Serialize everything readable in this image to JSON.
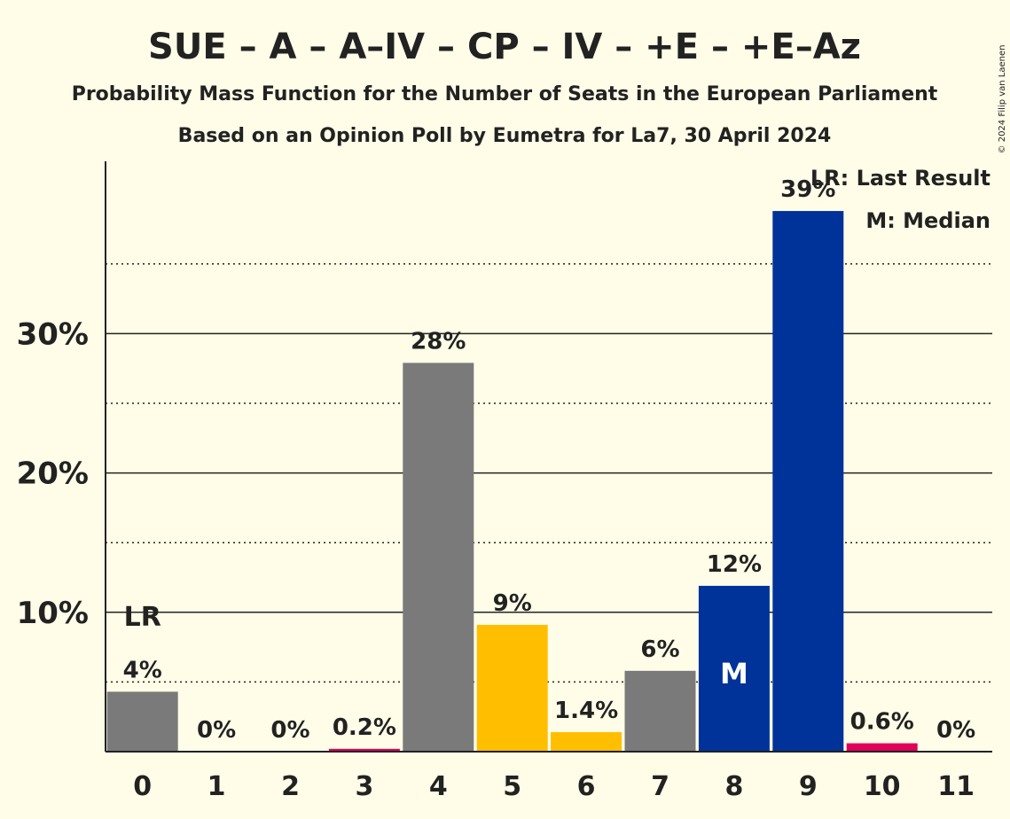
{
  "chart_data": {
    "type": "bar",
    "title": "SUE – A – A–IV – CP – IV – +E – +E–Az",
    "subtitle1": "Probability Mass Function for the Number of Seats in the European Parliament",
    "subtitle2": "Based on an Opinion Poll by Eumetra for La7, 30 April 2024",
    "copyright": "© 2024 Filip van Laenen",
    "categories": [
      "0",
      "1",
      "2",
      "3",
      "4",
      "5",
      "6",
      "7",
      "8",
      "9",
      "10",
      "11"
    ],
    "values": [
      4.3,
      0,
      0,
      0.2,
      27.9,
      9.1,
      1.4,
      5.8,
      11.9,
      38.8,
      0.6,
      0
    ],
    "labels": [
      "4%",
      "0%",
      "0%",
      "0.2%",
      "28%",
      "9%",
      "1.4%",
      "6%",
      "12%",
      "39%",
      "0.6%",
      "0%"
    ],
    "colors": [
      "#7a7a7a",
      "#7a7a7a",
      "#7a7a7a",
      "#e0005a",
      "#7a7a7a",
      "#ffbf00",
      "#ffbf00",
      "#7a7a7a",
      "#003399",
      "#003399",
      "#e0005a",
      "#7a7a7a"
    ],
    "ylim": [
      0,
      42
    ],
    "yticks": [
      {
        "value": 10,
        "label": "10%"
      },
      {
        "value": 20,
        "label": "20%"
      },
      {
        "value": 30,
        "label": "30%"
      }
    ],
    "minor_gridlines": [
      5,
      15,
      25,
      35
    ],
    "last_result": {
      "seat_index": 0,
      "label": "LR"
    },
    "median": {
      "seat_index": 8,
      "label": "M"
    },
    "legend": [
      "LR: Last Result",
      "M: Median"
    ],
    "legend_position": "top-right"
  }
}
